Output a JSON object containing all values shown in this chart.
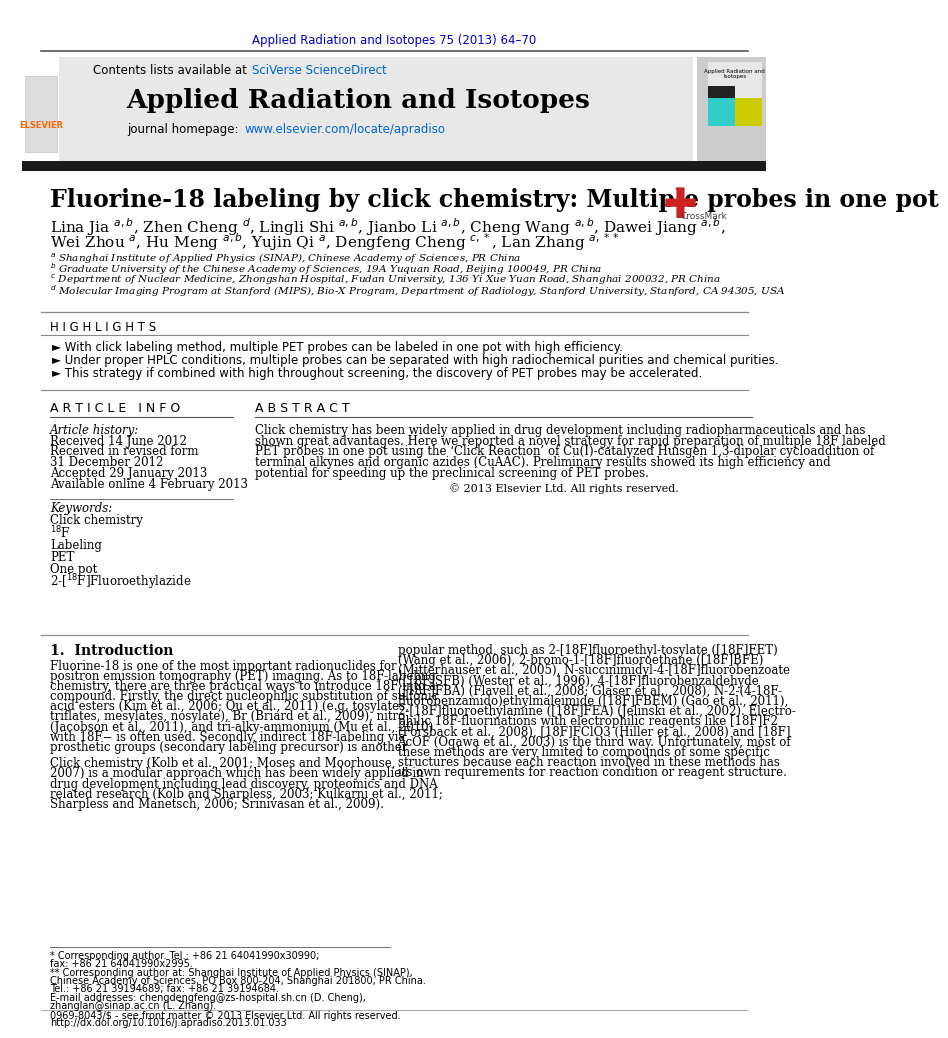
{
  "journal_citation": "Applied Radiation and Isotopes 75 (2013) 64–70",
  "journal_citation_color": "#0000cc",
  "header_bg_color": "#e8e8e8",
  "sciverse_color": "#0066cc",
  "journal_title": "Applied Radiation and Isotopes",
  "journal_url": "www.elsevier.com/locate/apradiso",
  "journal_url_color": "#0066cc",
  "paper_title": "Fluorine-18 labeling by click chemistry: Multiple probes in one pot",
  "highlights_title": "H I G H L I G H T S",
  "highlight_items": [
    "► With click labeling method, multiple PET probes can be labeled in one pot with high efficiency.",
    "► Under proper HPLC conditions, multiple probes can be separated with high radiochemical purities and chemical purities.",
    "► This strategy if combined with high throughout screening, the discovery of PET probes may be accelerated."
  ],
  "article_info_title": "A R T I C L E   I N F O",
  "abstract_title": "A B S T R A C T",
  "article_history_label": "Article history:",
  "hist_items": [
    "Received 14 June 2012",
    "Received in revised form",
    "31 December 2012",
    "Accepted 29 January 2013",
    "Available online 4 February 2013"
  ],
  "keywords_label": "Keywords:",
  "keywords": [
    "Click chemistry",
    "18F",
    "Labeling",
    "PET",
    "One pot",
    "2-[18F]Fluoroethylazide"
  ],
  "abstract_text": "Click chemistry has been widely applied in drug development including radiopharmaceuticals and has shown great advantages. Here we reported a novel strategy for rapid preparation of multiple 18F labeled PET probes in one pot using the ‘Click Reaction’ of Cu(I)-catalyzed Huisgen 1,3-dipolar cycloaddition of terminal alkynes and organic azides (CuAAC). Preliminary results showed its high efficiency and potential for speeding up the preclinical screening of PET probes.",
  "copyright": "© 2013 Elsevier Ltd. All rights reserved.",
  "intro_title": "1.  Introduction",
  "intro_col1": [
    "Fluorine-18 is one of the most important radionuclides for",
    "positron emission tomography (PET) imaging. As to 18F-labeling",
    "chemistry, there are three practical ways to introduce 18F into a",
    "compound. Firstly, the direct nucleophilic substitution of sulfonic",
    "acid esters (Kim et al., 2006; Qu et al., 2011) (e.g. tosylates,",
    "triflates, mesylates, nosylate), Br (Briard et al., 2009), nitro",
    "(Jacobson et al., 2011), and tri-alky-ammonium (Mu et al., 2010)",
    "with 18F− is often used. Secondly, indirect 18F-labeling via",
    "prosthetic groups (secondary labeling precursor) is another"
  ],
  "intro_col2": [
    "popular method, such as 2-[18F]fluoroethyl-tosylate ([18F]FET)",
    "(Wang et al., 2006), 2-bromo-1-[18F]fluoroethane ([18F]BFE)",
    "(Mitterhauser et al., 2005), N-succinimidyl-4-[18F]fluorobenzoate",
    "([18F]SFB) (Wester et al., 1996), 4-[18F]fluorobenzaldehyde",
    "([18F]FBA) (Flavell et al., 2008; Glaser et al., 2008), N-2-(4-18F-",
    "fluorobenzamido)ethylmaleimide ([18F]FBEM) (Gao et al., 2011),",
    "2-[18F]fluoroethylamine ([18F]FEA) (Jelinski et al., 2002). Electro-",
    "philic 18F-fluorinations with electrophilic reagents like [18F]F2",
    "(Forsback et al., 2008), [18F]FClO3 (Hiller et al., 2008) and [18F]",
    "AcOF (Ogawa et al., 2003) is the third way. Unfortunately, most of",
    "these methods are very limited to compounds of some specific",
    "structures because each reaction involved in these methods has",
    "its own requirements for reaction condition or reagent structure."
  ],
  "click_col1": [
    "Click chemistry (Kolb et al., 2001; Moses and Moorhouse,",
    "2007) is a modular approach which has been widely applied in",
    "drug development including lead discovery, proteomics and DNA",
    "related research (Kolb and Sharpless, 2003; Kulkarni et al., 2011;",
    "Sharpless and Manetsch, 2006; Srinivasan et al., 2009)."
  ],
  "affil_lines": [
    "a Shanghai Institute of Applied Physics (SINAP), Chinese Academy of Sciences, PR China",
    "b Graduate University of the Chinese Academy of Sciences, 19A Yuquan Road, Beijing 100049, PR China",
    "c Department of Nuclear Medicine, Zhongshan Hospital, Fudan University, 136 Yi Xue Yuan Road, Shanghai 200032, PR China",
    "d Molecular Imaging Program at Stanford (MIPS), Bio-X Program, Department of Radiology, Stanford University, Stanford, CA 94305, USA"
  ],
  "footnotes": [
    "* Corresponding author. Tel.: +86 21 64041990x30990;",
    "fax: +86 21 64041990x2995.",
    "** Corresponding author at: Shanghai Institute of Applied Physics (SINAP),",
    "Chinese Academy of Sciences, PO Box 800-204, Shanghai 201800, PR China.",
    "Tel.: +86 21 39194689; fax: +86 21 39194684.",
    "E-mail addresses: chengdengfeng@zs-hospital.sh.cn (D. Cheng),",
    "zhanglan@sinap.ac.cn (L. Zhang)."
  ],
  "issn_line": "0969-8043/$ - see front matter © 2013 Elsevier Ltd. All rights reserved.",
  "doi_line": "http://dx.doi.org/10.1016/j.apradiso.2013.01.033",
  "bg_color": "#ffffff",
  "text_color": "#000000",
  "link_color": "#0000cc",
  "elsevier_color": "#ff6600",
  "black_bar_color": "#1a1a1a",
  "header_line_color": "#555555",
  "section_line_color": "#888888"
}
